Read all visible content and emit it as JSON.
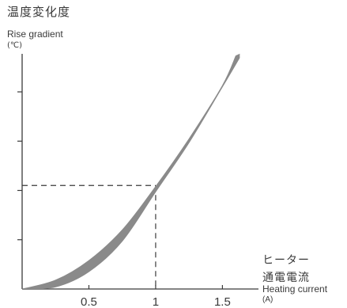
{
  "chart_data": {
    "type": "area",
    "ylabel_jp": "温度変化度",
    "ylabel_en": "Rise gradient",
    "yunit": "(℃)",
    "xlabel_jp1": "ヒーター",
    "xlabel_jp2": "通電電流",
    "xlabel_en": "Heating current",
    "xunit": "(A)",
    "x_ticks": [
      "0.5",
      "1",
      "1.5"
    ],
    "x_tick_values": [
      0.5,
      1,
      1.5
    ],
    "y_tick_values": [
      1,
      2,
      3,
      4
    ],
    "xlim": [
      0,
      1.77
    ],
    "ylim": [
      0,
      4.9
    ],
    "reference": {
      "x": 1,
      "y": 2.1
    },
    "series": [
      {
        "band_upper": [
          [
            0,
            0
          ],
          [
            0.25,
            0.18
          ],
          [
            0.5,
            0.58
          ],
          [
            0.75,
            1.2
          ],
          [
            1,
            2.08
          ],
          [
            1.25,
            3.05
          ],
          [
            1.5,
            4.13
          ],
          [
            1.6,
            4.73
          ]
        ],
        "band_lower": [
          [
            0,
            0
          ],
          [
            0.25,
            0.04
          ],
          [
            0.5,
            0.35
          ],
          [
            0.75,
            0.97
          ],
          [
            1,
            1.97
          ],
          [
            1.25,
            2.97
          ],
          [
            1.5,
            4.1
          ],
          [
            1.65,
            4.79
          ]
        ]
      }
    ],
    "band_color": "#8a8a8a",
    "axis_color": "#3a3a3a"
  }
}
